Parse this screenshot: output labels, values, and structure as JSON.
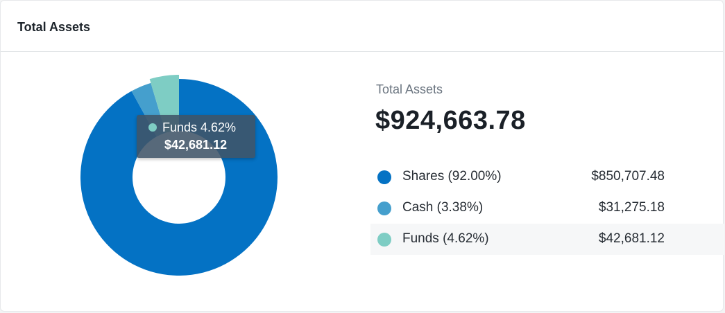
{
  "card": {
    "title": "Total Assets"
  },
  "summary": {
    "label": "Total Assets",
    "value": "$924,663.78"
  },
  "tooltip": {
    "label": "Funds 4.62%",
    "value": "$42,681.12",
    "color": "#7ecdc4"
  },
  "legend": {
    "items": [
      {
        "label": "Shares (92.00%)",
        "value": "$850,707.48",
        "color": "#0472c4"
      },
      {
        "label": "Cash (3.38%)",
        "value": "$31,275.18",
        "color": "#459fcd"
      },
      {
        "label": "Funds (4.62%)",
        "value": "$42,681.12",
        "color": "#7ecdc4"
      }
    ]
  },
  "chart_data": {
    "type": "pie",
    "title": "",
    "series": [
      {
        "name": "Shares",
        "value": 850707.48,
        "percent": 92.0,
        "color": "#0472c4"
      },
      {
        "name": "Cash",
        "value": 31275.18,
        "percent": 3.38,
        "color": "#459fcd"
      },
      {
        "name": "Funds",
        "value": 42681.12,
        "percent": 4.62,
        "color": "#7ecdc4"
      }
    ],
    "highlighted": "Funds"
  }
}
